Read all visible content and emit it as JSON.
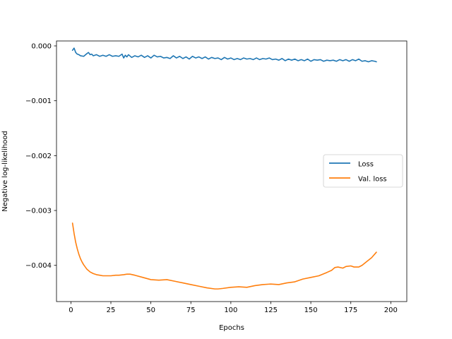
{
  "chart_data": {
    "type": "line",
    "title": "",
    "xlabel": "Epochs",
    "ylabel": "Negative log-likelihood",
    "xlim": [
      -9,
      210
    ],
    "ylim": [
      -0.00466,
      9e-05
    ],
    "xticks": [
      0,
      25,
      50,
      75,
      100,
      125,
      150,
      175,
      200
    ],
    "xtick_labels": [
      "0",
      "25",
      "50",
      "75",
      "100",
      "125",
      "150",
      "175",
      "200"
    ],
    "yticks": [
      0.0,
      -0.001,
      -0.002,
      -0.003,
      -0.004
    ],
    "ytick_labels": [
      "0.000",
      "−0.001",
      "−0.002",
      "−0.003",
      "−0.004"
    ],
    "grid": false,
    "legend_position": "center-right",
    "series": [
      {
        "name": "Loss",
        "color": "#1f77b4",
        "x": [
          1,
          2,
          3,
          4,
          5,
          6,
          8,
          10,
          11,
          12,
          13,
          14,
          16,
          18,
          20,
          22,
          24,
          26,
          28,
          30,
          32,
          33,
          34,
          35,
          36,
          38,
          40,
          42,
          44,
          46,
          48,
          50,
          52,
          54,
          56,
          58,
          60,
          62,
          64,
          66,
          68,
          70,
          72,
          74,
          76,
          78,
          80,
          82,
          84,
          86,
          88,
          90,
          92,
          94,
          96,
          98,
          100,
          102,
          104,
          106,
          108,
          110,
          112,
          114,
          116,
          118,
          120,
          122,
          124,
          126,
          128,
          130,
          132,
          134,
          136,
          138,
          140,
          142,
          144,
          146,
          148,
          150,
          152,
          154,
          156,
          158,
          160,
          162,
          164,
          166,
          168,
          170,
          172,
          174,
          176,
          178,
          180,
          182,
          184,
          186,
          188,
          190,
          191
        ],
        "values": [
          -8e-05,
          -4e-05,
          -0.00012,
          -0.00015,
          -0.00016,
          -0.00018,
          -0.00019,
          -0.00014,
          -0.00012,
          -0.00016,
          -0.00015,
          -0.00018,
          -0.00016,
          -0.00019,
          -0.00017,
          -0.00019,
          -0.00016,
          -0.00019,
          -0.00018,
          -0.00019,
          -0.00015,
          -0.00022,
          -0.00017,
          -0.0002,
          -0.00016,
          -0.00021,
          -0.00018,
          -0.0002,
          -0.00017,
          -0.00021,
          -0.00018,
          -0.00022,
          -0.00017,
          -0.0002,
          -0.00019,
          -0.00022,
          -0.00021,
          -0.00023,
          -0.00018,
          -0.00022,
          -0.00019,
          -0.00023,
          -0.0002,
          -0.00024,
          -0.00019,
          -0.00022,
          -0.0002,
          -0.00023,
          -0.0002,
          -0.00024,
          -0.00021,
          -0.00023,
          -0.00022,
          -0.00025,
          -0.00021,
          -0.00024,
          -0.00022,
          -0.00025,
          -0.00023,
          -0.00025,
          -0.00022,
          -0.00024,
          -0.00023,
          -0.00025,
          -0.00022,
          -0.00025,
          -0.00023,
          -0.00024,
          -0.00022,
          -0.00025,
          -0.00024,
          -0.00026,
          -0.00023,
          -0.00027,
          -0.00024,
          -0.00026,
          -0.00024,
          -0.00027,
          -0.00025,
          -0.00027,
          -0.00024,
          -0.00028,
          -0.00025,
          -0.00026,
          -0.00025,
          -0.00028,
          -0.00026,
          -0.00027,
          -0.00026,
          -0.00028,
          -0.00025,
          -0.00027,
          -0.00025,
          -0.00028,
          -0.00025,
          -0.00027,
          -0.00024,
          -0.00028,
          -0.00027,
          -0.00029,
          -0.00027,
          -0.00028,
          -0.00029
        ]
      },
      {
        "name": "Val. loss",
        "color": "#ff7f0e",
        "x": [
          1,
          2,
          3,
          4,
          5,
          6,
          7,
          8,
          9,
          10,
          12,
          14,
          16,
          18,
          20,
          22,
          25,
          28,
          30,
          33,
          35,
          37,
          40,
          45,
          50,
          55,
          60,
          65,
          70,
          75,
          80,
          85,
          90,
          92,
          95,
          100,
          105,
          110,
          115,
          120,
          125,
          130,
          135,
          140,
          145,
          150,
          155,
          160,
          163,
          165,
          167,
          170,
          172,
          175,
          177,
          180,
          182,
          185,
          188,
          191
        ],
        "values": [
          -0.00323,
          -0.00342,
          -0.00358,
          -0.0037,
          -0.0038,
          -0.00388,
          -0.00394,
          -0.00399,
          -0.00403,
          -0.00407,
          -0.00412,
          -0.00415,
          -0.00417,
          -0.00418,
          -0.00419,
          -0.00419,
          -0.00419,
          -0.00418,
          -0.00418,
          -0.00417,
          -0.00416,
          -0.00416,
          -0.00418,
          -0.00422,
          -0.00426,
          -0.00427,
          -0.00426,
          -0.00429,
          -0.00432,
          -0.00435,
          -0.00438,
          -0.00441,
          -0.00443,
          -0.00443,
          -0.00442,
          -0.0044,
          -0.00439,
          -0.0044,
          -0.00437,
          -0.00435,
          -0.00434,
          -0.00435,
          -0.00432,
          -0.0043,
          -0.00425,
          -0.00422,
          -0.00419,
          -0.00413,
          -0.00409,
          -0.00404,
          -0.00403,
          -0.00405,
          -0.00402,
          -0.00401,
          -0.00403,
          -0.00403,
          -0.004,
          -0.00393,
          -0.00386,
          -0.00376
        ]
      }
    ]
  }
}
